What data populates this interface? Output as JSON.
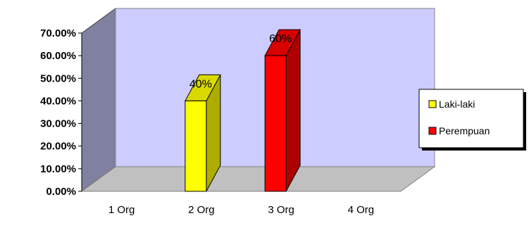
{
  "chart_data": {
    "type": "bar",
    "categories": [
      "1 Org",
      "2 Org",
      "3 Org",
      "4 Org"
    ],
    "series": [
      {
        "name": "Laki-laki",
        "color": "#ffff00",
        "values": [
          null,
          0.4,
          null,
          null
        ]
      },
      {
        "name": "Perempuan",
        "color": "#ff0000",
        "values": [
          null,
          null,
          0.6,
          null
        ]
      }
    ],
    "data_labels": [
      "40%",
      "60%"
    ],
    "ylim": [
      0,
      0.7
    ],
    "y_ticks": [
      "0.00%",
      "10.00%",
      "20.00%",
      "30.00%",
      "40.00%",
      "50.00%",
      "60.00%",
      "70.00%"
    ],
    "legend_position": "right",
    "three_d": true,
    "colors": {
      "back_wall": "#ccccff",
      "side_wall": "#8080a0",
      "floor": "#c0c0c0"
    }
  }
}
